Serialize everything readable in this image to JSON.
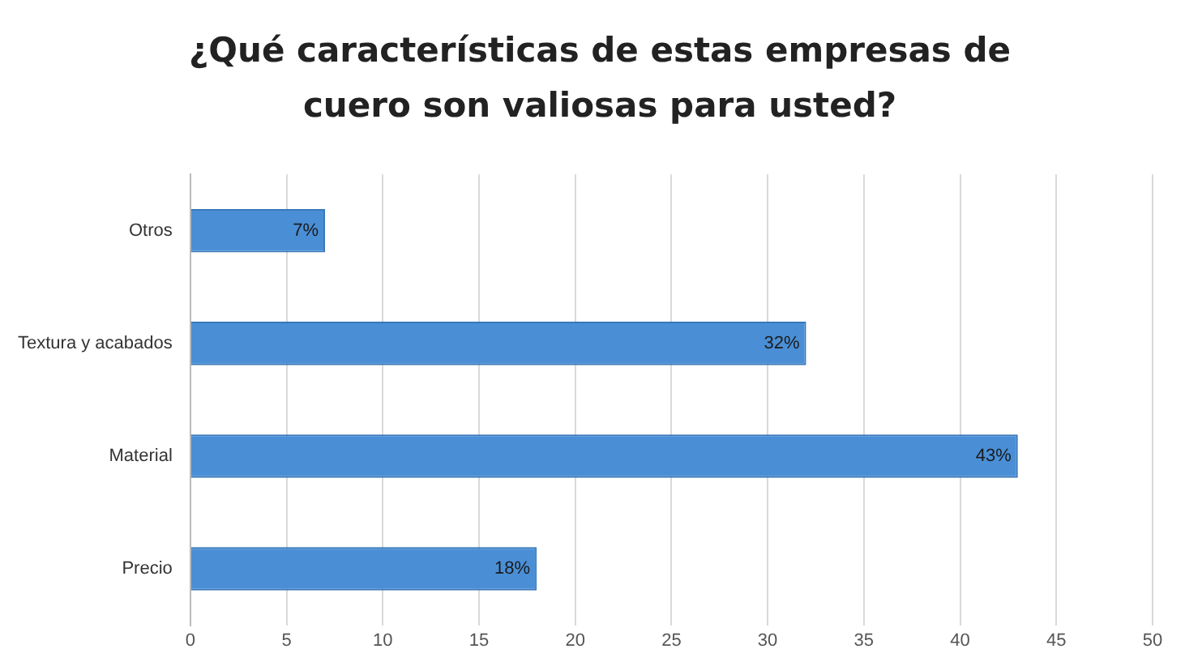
{
  "chart_data": {
    "type": "bar",
    "orientation": "horizontal",
    "title": "¿Qué características de estas empresas de cuero son valiosas para usted?",
    "categories": [
      "Otros",
      "Textura y acabados",
      "Material",
      "Precio"
    ],
    "values": [
      7,
      32,
      43,
      18
    ],
    "value_labels": [
      "7%",
      "32%",
      "43%",
      "18%"
    ],
    "color": "#4a8fd6",
    "xlim": [
      0,
      50
    ],
    "xticks": [
      0,
      5,
      10,
      15,
      20,
      25,
      30,
      35,
      40,
      45,
      50
    ],
    "grid": "x",
    "legend": false
  }
}
